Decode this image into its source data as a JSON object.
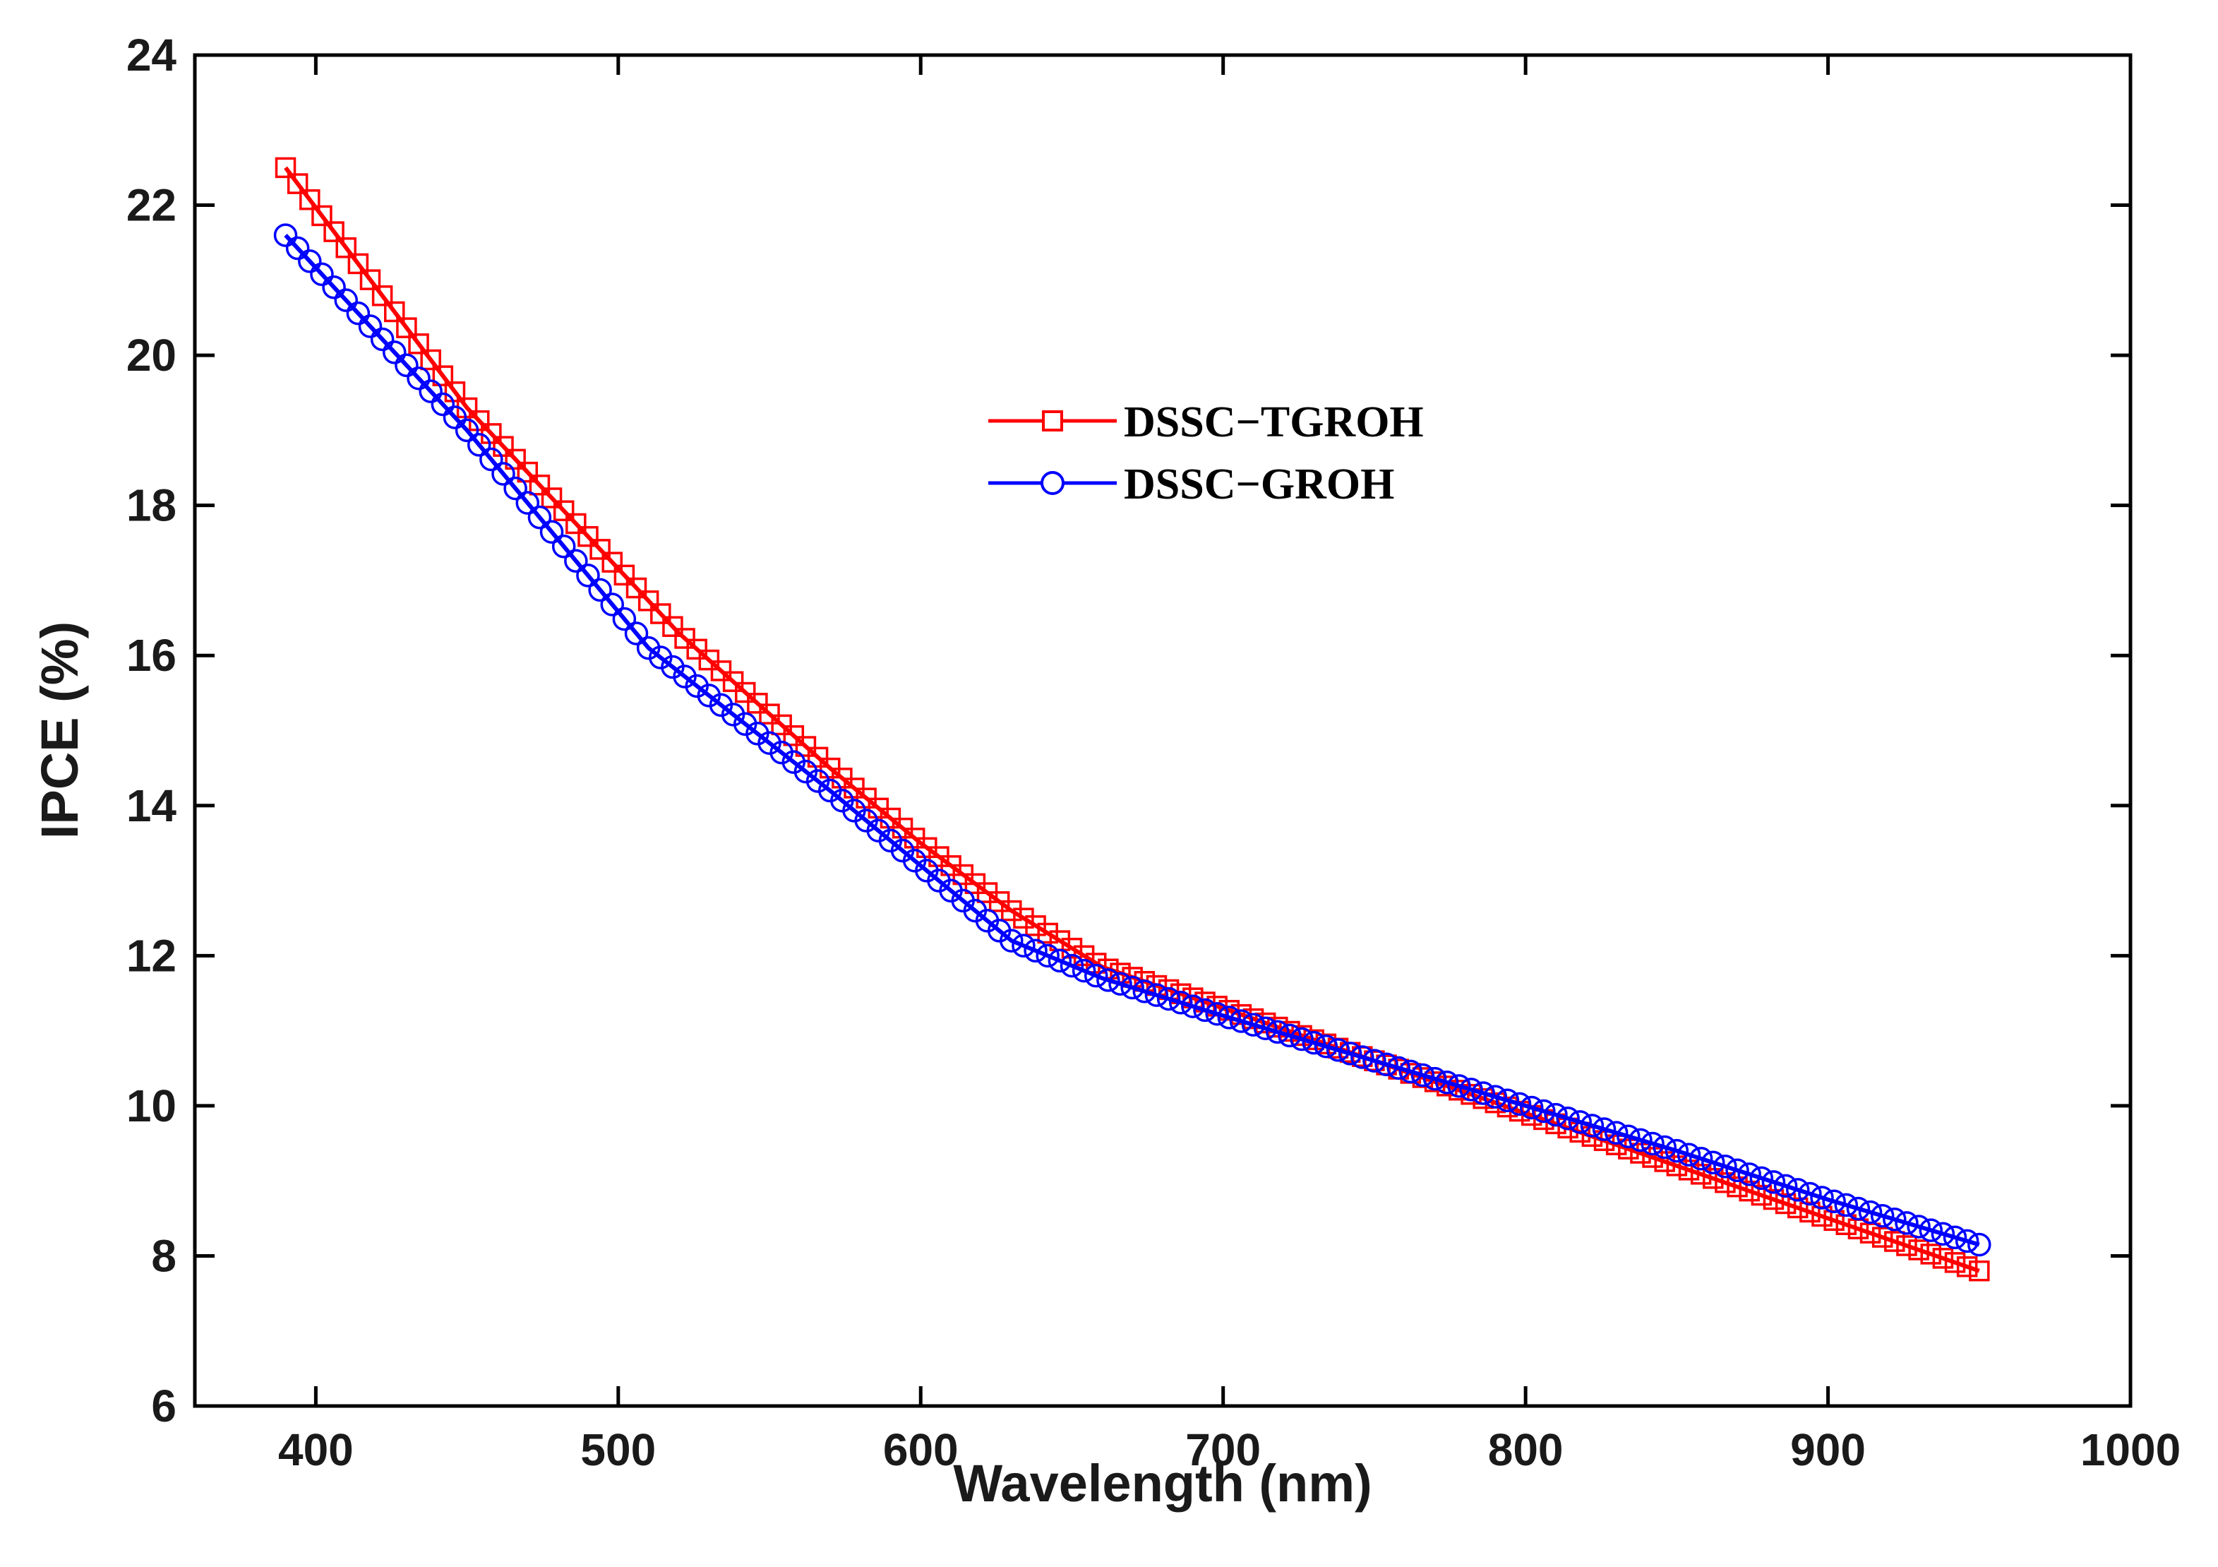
{
  "chart_data": {
    "type": "line",
    "title": "",
    "xlabel": "Wavelength (nm)",
    "ylabel": "IPCE (%)",
    "xlim": [
      360,
      1000
    ],
    "ylim": [
      6,
      24
    ],
    "xticks": [
      400,
      500,
      600,
      700,
      800,
      900,
      1000
    ],
    "yticks": [
      6,
      8,
      10,
      12,
      14,
      16,
      18,
      20,
      22,
      24
    ],
    "grid": false,
    "legend_position": "center-top",
    "series": [
      {
        "name": "DSSC−TGROH",
        "color": "#ff0000",
        "marker": "square",
        "x": [
          390,
          450,
          520,
          570,
          600,
          630,
          660,
          700,
          750,
          800,
          850,
          900,
          950
        ],
        "y": [
          22.5,
          19.3,
          16.3,
          14.5,
          13.5,
          12.6,
          11.85,
          11.3,
          10.6,
          9.9,
          9.2,
          8.5,
          7.8
        ]
      },
      {
        "name": "DSSC−GROH",
        "color": "#0000ff",
        "marker": "circle",
        "x": [
          390,
          450,
          510,
          570,
          600,
          630,
          660,
          700,
          750,
          800,
          850,
          900,
          950
        ],
        "y": [
          21.6,
          19.0,
          16.1,
          14.2,
          13.2,
          12.2,
          11.7,
          11.2,
          10.6,
          10.0,
          9.4,
          8.75,
          8.15
        ]
      }
    ]
  }
}
